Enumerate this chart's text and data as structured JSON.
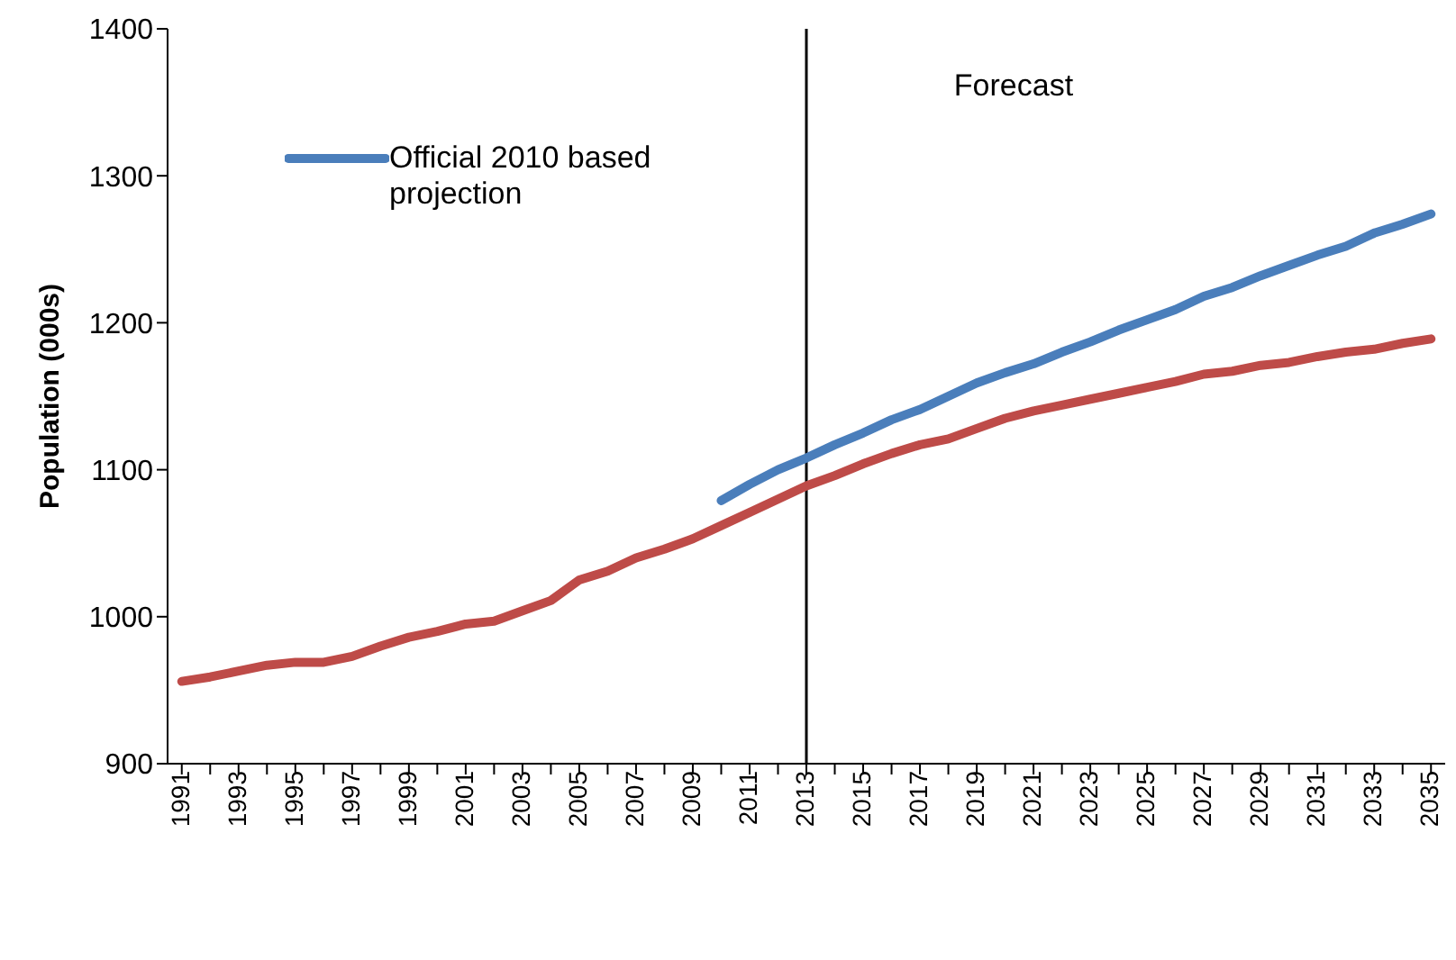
{
  "chart_data": {
    "type": "line",
    "ylabel": "Population (000s)",
    "categories": [
      "1991",
      null,
      "1993",
      null,
      "1995",
      null,
      "1997",
      null,
      "1999",
      null,
      "2001",
      null,
      "2003",
      null,
      "2005",
      null,
      "2007",
      null,
      "2009",
      null,
      "2011",
      null,
      "2013",
      null,
      "2015",
      null,
      "2017",
      null,
      "2019",
      null,
      "2021",
      null,
      "2023",
      null,
      "2025",
      null,
      "2027",
      null,
      "2029",
      null,
      "2031",
      null,
      "2033",
      null,
      "2035"
    ],
    "series": [
      {
        "name": "Official  2010 based projection",
        "color": "#4a7ebb",
        "values": [
          null,
          null,
          null,
          null,
          null,
          null,
          null,
          null,
          null,
          null,
          null,
          null,
          null,
          null,
          null,
          null,
          null,
          null,
          null,
          1079,
          1090,
          1100,
          1108,
          1117,
          1125,
          1134,
          1141,
          1150,
          1159,
          1166,
          1172,
          1180,
          1187,
          1195,
          1202,
          1209,
          1218,
          1224,
          1232,
          1239,
          1246,
          1252,
          1261,
          1267,
          1274
        ]
      },
      {
        "color": "#be4b48",
        "values": [
          956,
          959,
          963,
          967,
          969,
          969,
          973,
          980,
          986,
          990,
          995,
          997,
          1004,
          1011,
          1025,
          1031,
          1040,
          1046,
          1053,
          1062,
          1071,
          1080,
          1089,
          1096,
          1104,
          1111,
          1117,
          1121,
          1128,
          1135,
          1140,
          1144,
          1148,
          1152,
          1156,
          1160,
          1165,
          1167,
          1171,
          1173,
          1177,
          1180,
          1182,
          1186,
          1189
        ]
      }
    ],
    "ylim": [
      900,
      1400
    ],
    "yticks": [
      900,
      1000,
      1100,
      1200,
      1300,
      1400
    ],
    "ref_lines": [
      {
        "axis": "x",
        "value": "2013",
        "label": "Forecast",
        "color": "#000000"
      }
    ],
    "grid": false,
    "legend": "top left",
    "marker": "none",
    "line_style": "solid"
  }
}
